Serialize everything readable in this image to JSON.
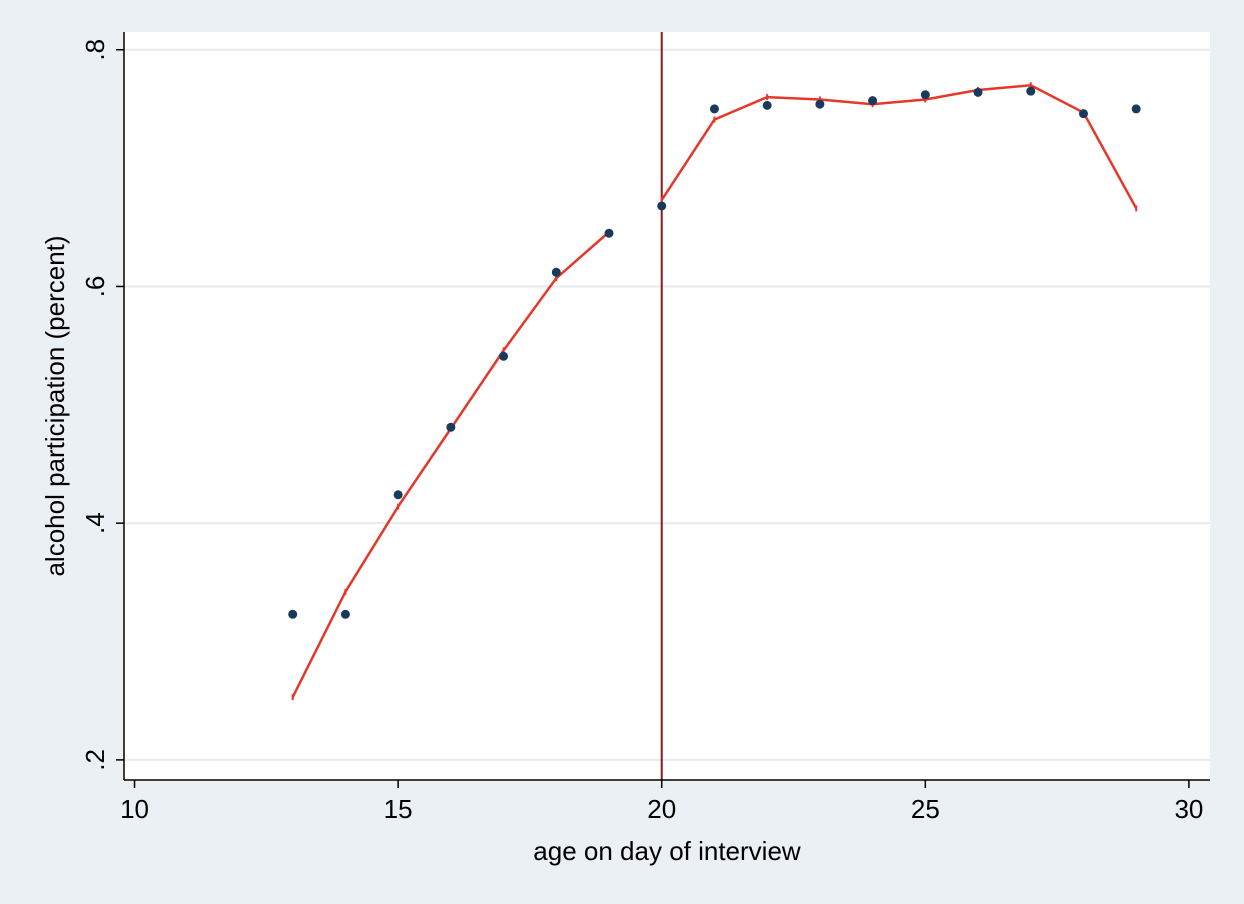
{
  "chart_data": {
    "type": "scatter",
    "xlabel": "age on day of interview",
    "ylabel": "alcohol participation (percent)",
    "xlim": [
      9.8,
      30.4
    ],
    "ylim": [
      0.183,
      0.815
    ],
    "x_ticks": [
      {
        "value": 10,
        "label": "10"
      },
      {
        "value": 15,
        "label": "15"
      },
      {
        "value": 20,
        "label": "20"
      },
      {
        "value": 25,
        "label": "25"
      },
      {
        "value": 30,
        "label": "30"
      }
    ],
    "y_ticks": [
      {
        "value": 0.2,
        "label": ".2"
      },
      {
        "value": 0.4,
        "label": ".4"
      },
      {
        "value": 0.6,
        "label": ".6"
      },
      {
        "value": 0.8,
        "label": ".8"
      }
    ],
    "grid": "horizontal",
    "cutoff_line": 20,
    "series": [
      {
        "kind": "scatter",
        "color": "#1a3a5c",
        "points": [
          [
            13,
            0.323
          ],
          [
            14,
            0.323
          ],
          [
            15,
            0.424
          ],
          [
            16,
            0.481
          ],
          [
            17,
            0.541
          ],
          [
            18,
            0.612
          ],
          [
            19,
            0.645
          ],
          [
            20,
            0.668
          ],
          [
            21,
            0.75
          ],
          [
            22,
            0.753
          ],
          [
            23,
            0.754
          ],
          [
            24,
            0.757
          ],
          [
            25,
            0.762
          ],
          [
            26,
            0.764
          ],
          [
            27,
            0.765
          ],
          [
            28,
            0.746
          ],
          [
            29,
            0.75
          ]
        ]
      },
      {
        "kind": "line",
        "color": "#e5372a",
        "segments": [
          [
            [
              13,
              0.253
            ],
            [
              14,
              0.342
            ],
            [
              15,
              0.414
            ],
            [
              16,
              0.48
            ],
            [
              17,
              0.546
            ],
            [
              18,
              0.607
            ],
            [
              19,
              0.646
            ]
          ],
          [
            [
              20,
              0.673
            ],
            [
              21,
              0.741
            ],
            [
              22,
              0.76
            ],
            [
              23,
              0.758
            ],
            [
              24,
              0.754
            ],
            [
              25,
              0.758
            ],
            [
              26,
              0.766
            ],
            [
              27,
              0.77
            ],
            [
              28,
              0.747
            ],
            [
              29,
              0.666
            ]
          ]
        ]
      }
    ],
    "colors": {
      "background": "#eaf0f3",
      "plot_background": "#ffffff",
      "grid": "#e6ebef",
      "cutoff": "#8b1a1a"
    }
  }
}
